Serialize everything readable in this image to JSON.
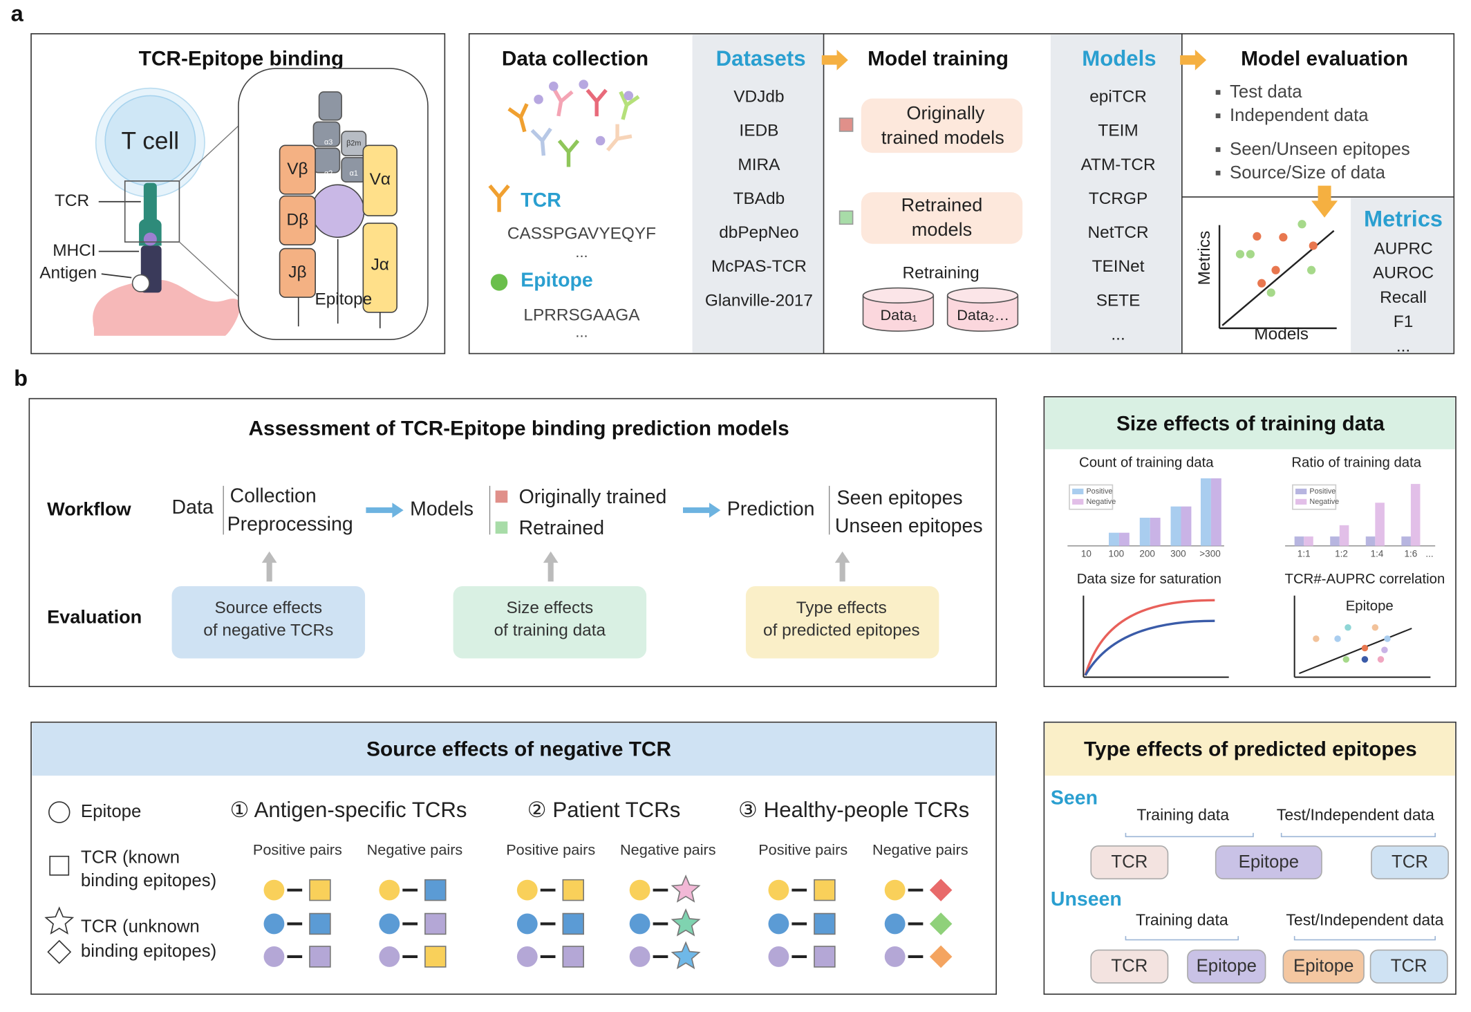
{
  "panel_labels": [
    "a",
    "b"
  ],
  "tcr_epitope_binding": {
    "title": "TCR-Epitope binding",
    "cell": "T cell",
    "tcr": "TCR",
    "mhc": "MHCI",
    "antigen": "Antigen",
    "epitope": "Epitope",
    "chains": [
      "Vβ",
      "Dβ",
      "Jβ",
      "Vα",
      "Jα"
    ],
    "mhc_domains": [
      "α3",
      "β2m",
      "α2",
      "α1"
    ]
  },
  "data_collection": {
    "title": "Data collection",
    "tcr": "TCR",
    "tcr_sequence": "CASSPGAVYEQYF",
    "tcr_more": "...",
    "epitope": "Epitope",
    "epitope_sequence": "LPRRSGAAGA",
    "epitope_more": "..."
  },
  "datasets": {
    "title": "Datasets",
    "items": [
      "VDJdb",
      "IEDB",
      "MIRA",
      "TBAdb",
      "dbPepNeo",
      "McPAS-TCR",
      "Glanville-2017"
    ]
  },
  "model_training": {
    "title": "Model training",
    "originally_trained": [
      "Originally",
      "trained models"
    ],
    "retrained": [
      "Retrained",
      "models"
    ],
    "retraining": "Retraining",
    "data": [
      "Data₁",
      "Data₂…"
    ]
  },
  "models": {
    "title": "Models",
    "items": [
      "epiTCR",
      "TEIM",
      "ATM-TCR",
      "TCRGP",
      "NetTCR",
      "TEINet",
      "SETE",
      "..."
    ]
  },
  "model_evaluation": {
    "title": "Model evaluation",
    "items": [
      "Test data",
      "Independent data",
      "Seen/Unseen epitopes",
      "Source/Size of data"
    ],
    "y_axis": "Metrics",
    "x_axis": "Models"
  },
  "metrics": {
    "title": "Metrics",
    "items": [
      "AUPRC",
      "AUROC",
      "Recall",
      "F1",
      "..."
    ]
  },
  "assessment": {
    "title": "Assessment of TCR-Epitope binding prediction models",
    "workflow_label": "Workflow",
    "evaluation_label": "Evaluation",
    "workflow": {
      "data": "Data",
      "data_steps": [
        "Collection",
        "Preprocessing"
      ],
      "models": "Models",
      "model_kinds": [
        "Originally trained",
        "Retrained"
      ],
      "prediction": "Prediction",
      "prediction_kinds": [
        "Seen epitopes",
        "Unseen epitopes"
      ]
    },
    "evaluation": [
      [
        "Source effects",
        "of negative TCRs"
      ],
      [
        "Size effects",
        "of training data"
      ],
      [
        "Type effects",
        "of predicted epitopes"
      ]
    ]
  },
  "size_effects": {
    "title": "Size effects of training data",
    "count": {
      "title": "Count of training data",
      "legend": [
        "Positive",
        "Negative"
      ],
      "categories": [
        "10",
        "100",
        "200",
        "300",
        ">300"
      ]
    },
    "ratio": {
      "title": "Ratio of training data",
      "legend": [
        "Positive",
        "Negative"
      ],
      "categories": [
        "1:1",
        "1:2",
        "1:4",
        "1:6",
        "..."
      ]
    },
    "saturation": {
      "title": "Data size for saturation"
    },
    "correlation": {
      "title": "TCR#-AUPRC correlation",
      "label": "Epitope"
    }
  },
  "source_effects": {
    "title": "Source effects  of negative TCR",
    "legend": {
      "epitope": "Epitope",
      "known": [
        "TCR (known",
        "binding epitopes)"
      ],
      "unknown": [
        "TCR (unknown",
        "binding epitopes)"
      ]
    },
    "groups": [
      {
        "name": "① Antigen-specific TCRs",
        "pairs": [
          "Positive pairs",
          "Negative pairs"
        ]
      },
      {
        "name": "② Patient TCRs",
        "pairs": [
          "Positive pairs",
          "Negative pairs"
        ]
      },
      {
        "name": "③ Healthy-people TCRs",
        "pairs": [
          "Positive pairs",
          "Negative pairs"
        ]
      }
    ]
  },
  "type_effects": {
    "title": "Type effects of predicted epitopes",
    "seen": {
      "label": "Seen",
      "training": "Training data",
      "test": "Test/Independent data",
      "boxes": [
        "TCR",
        "Epitope",
        "TCR"
      ]
    },
    "unseen": {
      "label": "Unseen",
      "training": "Training data",
      "test": "Test/Independent data",
      "boxes": [
        "TCR",
        "Epitope",
        "Epitope",
        "TCR"
      ]
    }
  }
}
